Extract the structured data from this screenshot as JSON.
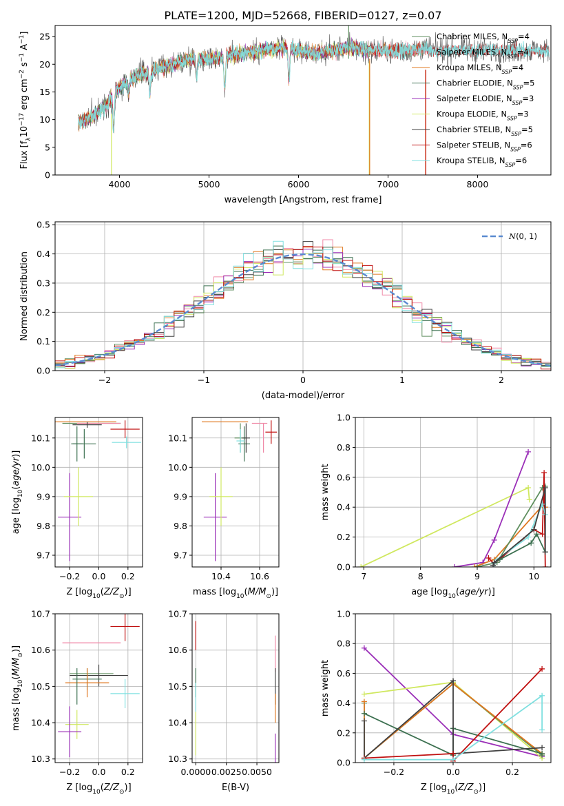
{
  "title": "PLATE=1200, MJD=52668, FIBERID=0127, z=0.07",
  "colors": {
    "Chabrier MILES": "#5f8f5f",
    "Salpeter MILES": "#f08aa8",
    "Kroupa MILES": "#e07820",
    "Chabrier ELODIE": "#3c7050",
    "Salpeter ELODIE": "#9b30b8",
    "Kroupa ELODIE": "#d0e860",
    "Chabrier STELIB": "#404040",
    "Salpeter STELIB": "#c01010",
    "Kroupa STELIB": "#80e0e0",
    "normal": "#5a8ad0"
  },
  "chart_data": [
    {
      "type": "line",
      "id": "spectrum",
      "title": "PLATE=1200, MJD=52668, FIBERID=0127, z=0.07",
      "xlabel": "wavelength [Angstrom, rest frame]",
      "ylabel": "Flux [f$_\\lambda$10$^{-17}$ erg cm$^{-2}$ s$^{-1}$ A$^{-1}$]",
      "xlim": [
        3280,
        8820
      ],
      "ylim": [
        0,
        27
      ],
      "xticks": [
        4000,
        5000,
        6000,
        7000,
        8000
      ],
      "yticks": [
        0,
        5,
        10,
        15,
        20,
        25
      ],
      "grid": false,
      "legend": "top-right",
      "legend_entries": [
        {
          "label": "Chabrier MILES, N",
          "sub": "SSP",
          "val": "=4",
          "series": "Chabrier MILES"
        },
        {
          "label": "Salpeter MILES, N",
          "sub": "SSP",
          "val": "=4",
          "series": "Salpeter MILES"
        },
        {
          "label": "Kroupa MILES, N",
          "sub": "SSP",
          "val": "=4",
          "series": "Kroupa MILES"
        },
        {
          "label": "Chabrier ELODIE, N",
          "sub": "SSP",
          "val": "=5",
          "series": "Chabrier ELODIE"
        },
        {
          "label": "Salpeter ELODIE, N",
          "sub": "SSP",
          "val": "=3",
          "series": "Salpeter ELODIE"
        },
        {
          "label": "Kroupa ELODIE, N",
          "sub": "SSP",
          "val": "=3",
          "series": "Kroupa ELODIE"
        },
        {
          "label": "Chabrier STELIB, N",
          "sub": "SSP",
          "val": "=5",
          "series": "Chabrier STELIB"
        },
        {
          "label": "Salpeter STELIB, N",
          "sub": "SSP",
          "val": "=6",
          "series": "Salpeter STELIB"
        },
        {
          "label": "Kroupa STELIB, N",
          "sub": "SSP",
          "val": "=6",
          "series": "Kroupa STELIB"
        }
      ],
      "continuum": {
        "x": [
          3550,
          3700,
          3850,
          3950,
          4050,
          4200,
          4400,
          4600,
          4800,
          5000,
          5200,
          5400,
          5600,
          5800,
          6000,
          6200,
          6400,
          6600,
          6800,
          7000,
          7200,
          7400,
          7500
        ],
        "y": [
          9.5,
          10.5,
          12.5,
          15.0,
          16.5,
          18.0,
          19.0,
          20.0,
          21.0,
          21.0,
          21.5,
          22.0,
          22.5,
          23.0,
          22.5,
          22.0,
          22.5,
          23.0,
          22.5,
          22.5,
          22.5,
          22.8,
          22.5
        ]
      },
      "absorption_features": [
        {
          "x": 3934,
          "y": 8.0
        },
        {
          "x": 4102,
          "y": 15.0
        },
        {
          "x": 4340,
          "y": 15.0
        },
        {
          "x": 4861,
          "y": 18.0
        },
        {
          "x": 5175,
          "y": 15.5
        },
        {
          "x": 5893,
          "y": 17.0
        }
      ],
      "spikes": [
        {
          "x": 3910,
          "y_from": 11.0,
          "y_to": 0.0,
          "series": "Kroupa ELODIE"
        },
        {
          "x": 6790,
          "y_from": 20.5,
          "y_to": 0.0,
          "series": "Kroupa ELODIE"
        },
        {
          "x": 6795,
          "y_from": 21.0,
          "y_to": 0.0,
          "series": "Kroupa MILES"
        },
        {
          "x": 7420,
          "y_from": 19.0,
          "y_to": 0.0,
          "series": "Kroupa MILES"
        },
        {
          "x": 7422,
          "y_from": 19.0,
          "y_to": 0.0,
          "series": "Salpeter STELIB"
        },
        {
          "x": 6560,
          "y_from": 21.0,
          "y_to": 27.5,
          "series": "Chabrier MILES"
        }
      ]
    },
    {
      "type": "step",
      "id": "residuals",
      "xlabel": "(data-model)/error",
      "ylabel": "Normed distribution",
      "xlim": [
        -2.5,
        2.5
      ],
      "ylim": [
        0,
        0.51
      ],
      "xticks": [
        -2,
        -1,
        0,
        1,
        2
      ],
      "xticklabels": [
        "−2",
        "−1",
        "0",
        "1",
        "2"
      ],
      "yticks": [
        0,
        0.1,
        0.2,
        0.3,
        0.4,
        0.5
      ],
      "yticklabels": [
        "0.0",
        "0.1",
        "0.2",
        "0.3",
        "0.4",
        "0.5"
      ],
      "grid": true,
      "legend": "top-right",
      "normal_label": "N(0, 1)",
      "bin_width": 0.1
    },
    {
      "type": "scatter",
      "id": "age-vs-Z",
      "xlabel": "Z [log10(Z/Z⊙)]",
      "ylabel": "age  [log10(age/yr)]",
      "xlim": [
        -0.3,
        0.3
      ],
      "ylim": [
        9.66,
        10.17
      ],
      "xticks": [
        -0.2,
        0.0,
        0.2
      ],
      "xticklabels": [
        "−0.2",
        "0.0",
        "0.2"
      ],
      "yticks": [
        9.7,
        9.8,
        9.9,
        10.0,
        10.1
      ],
      "yticklabels": [
        "9.7",
        "9.8",
        "9.9",
        "10.0",
        "10.1"
      ],
      "grid": true,
      "points": [
        {
          "series": "Chabrier MILES",
          "x": -0.05,
          "y": 10.15,
          "xerr": 0.2,
          "yerr": 0.0
        },
        {
          "series": "Salpeter MILES",
          "x": 0.0,
          "y": 10.15,
          "xerr": 0.15,
          "yerr": 0.0
        },
        {
          "series": "Kroupa MILES",
          "x": -0.1,
          "y": 10.155,
          "xerr": 0.22,
          "yerr": 0.0
        },
        {
          "series": "Chabrier ELODIE",
          "x": -0.15,
          "y": 10.08,
          "xerr": 0.04,
          "yerr": 0.06
        },
        {
          "series": "Salpeter ELODIE",
          "x": -0.2,
          "y": 9.83,
          "xerr": 0.08,
          "yerr": 0.15
        },
        {
          "series": "Kroupa ELODIE",
          "x": -0.14,
          "y": 9.9,
          "xerr": 0.1,
          "yerr": 0.1
        },
        {
          "series": "Chabrier STELIB",
          "x": -0.08,
          "y": 10.145,
          "xerr": 0.1,
          "yerr": 0.01
        },
        {
          "series": "Salpeter STELIB",
          "x": 0.18,
          "y": 10.13,
          "xerr": 0.1,
          "yerr": 0.03
        },
        {
          "series": "Kroupa STELIB",
          "x": 0.19,
          "y": 10.085,
          "xerr": 0.1,
          "yerr": 0.02
        },
        {
          "series": "Chabrier ELODIE",
          "x": -0.1,
          "y": 10.08,
          "xerr": 0.08,
          "yerr": 0.05
        }
      ]
    },
    {
      "type": "scatter",
      "id": "age-vs-mass",
      "xlabel": "mass [log10(M/M⊙)]",
      "ylabel": "",
      "xlim": [
        10.25,
        10.7
      ],
      "ylim": [
        9.66,
        10.17
      ],
      "xticks": [
        10.4,
        10.6
      ],
      "xticklabels": [
        "10.4",
        "10.6"
      ],
      "yticks": [
        9.7,
        9.8,
        9.9,
        10.0,
        10.1
      ],
      "yticklabels": [
        "9.7",
        "9.8",
        "9.9",
        "10.0",
        "10.1"
      ],
      "grid": true,
      "points": [
        {
          "series": "Kroupa MILES",
          "x": 10.42,
          "y": 10.155,
          "xerr": 0.12,
          "yerr": 0.0
        },
        {
          "series": "Salpeter MILES",
          "x": 10.6,
          "y": 10.15,
          "xerr": 0.04,
          "yerr": 0.0
        },
        {
          "series": "Chabrier MILES",
          "x": 10.5,
          "y": 10.1,
          "xerr": 0.03,
          "yerr": 0.05
        },
        {
          "series": "Chabrier ELODIE",
          "x": 10.52,
          "y": 10.08,
          "xerr": 0.03,
          "yerr": 0.06
        },
        {
          "series": "Salpeter ELODIE",
          "x": 10.37,
          "y": 9.83,
          "xerr": 0.06,
          "yerr": 0.15
        },
        {
          "series": "Kroupa ELODIE",
          "x": 10.4,
          "y": 9.9,
          "xerr": 0.06,
          "yerr": 0.1
        },
        {
          "series": "Chabrier STELIB",
          "x": 10.53,
          "y": 10.1,
          "xerr": 0.02,
          "yerr": 0.05
        },
        {
          "series": "Salpeter STELIB",
          "x": 10.66,
          "y": 10.12,
          "xerr": 0.03,
          "yerr": 0.04
        },
        {
          "series": "Kroupa STELIB",
          "x": 10.5,
          "y": 10.09,
          "xerr": 0.02,
          "yerr": 0.04
        },
        {
          "series": "Salpeter MILES",
          "x": 10.62,
          "y": 10.1,
          "xerr": 0.0,
          "yerr": 0.05
        }
      ]
    },
    {
      "type": "line",
      "id": "massweight-vs-age",
      "xlabel": "age  [log10(age/yr)]",
      "ylabel": "mass weight",
      "xlim": [
        6.85,
        10.3
      ],
      "ylim": [
        0,
        1
      ],
      "xticks": [
        7,
        8,
        9,
        10
      ],
      "xticklabels": [
        "7",
        "8",
        "9",
        "10"
      ],
      "yticks": [
        0,
        0.2,
        0.4,
        0.6,
        0.8,
        1.0
      ],
      "yticklabels": [
        "0.0",
        "0.2",
        "0.4",
        "0.6",
        "0.8",
        "1.0"
      ],
      "grid": true,
      "series": [
        {
          "name": "Kroupa ELODIE",
          "x": [
            6.95,
            9.9,
            9.92
          ],
          "y": [
            0.0,
            0.53,
            0.45
          ]
        },
        {
          "name": "Salpeter ELODIE",
          "x": [
            8.6,
            9.1,
            9.3,
            9.9
          ],
          "y": [
            0.0,
            0.03,
            0.18,
            0.77
          ]
        },
        {
          "name": "Kroupa MILES",
          "x": [
            8.95,
            9.3,
            10.15,
            10.2
          ],
          "y": [
            0.0,
            0.05,
            0.41,
            0.4
          ]
        },
        {
          "name": "Chabrier MILES",
          "x": [
            9.0,
            9.35,
            10.15,
            10.2
          ],
          "y": [
            0.0,
            0.03,
            0.53,
            0.54
          ]
        },
        {
          "name": "Salpeter STELIB",
          "x": [
            9.2,
            9.3,
            10.0,
            10.15,
            10.18,
            10.2
          ],
          "y": [
            0.06,
            0.02,
            0.25,
            0.22,
            0.63,
            0.0
          ]
        },
        {
          "name": "Kroupa STELIB",
          "x": [
            9.3,
            9.35,
            9.9,
            10.15,
            10.2
          ],
          "y": [
            0.02,
            0.05,
            0.2,
            0.42,
            0.35
          ]
        },
        {
          "name": "Chabrier ELODIE",
          "x": [
            9.3,
            9.4,
            9.95,
            10.05,
            10.2
          ],
          "y": [
            0.03,
            0.05,
            0.16,
            0.22,
            0.1
          ]
        },
        {
          "name": "Chabrier STELIB",
          "x": [
            9.28,
            9.3,
            10.0,
            10.2,
            10.2
          ],
          "y": [
            0.01,
            0.03,
            0.25,
            0.53,
            0.1
          ]
        }
      ]
    },
    {
      "type": "scatter",
      "id": "mass-vs-Z",
      "xlabel": "Z [log10(Z/Z⊙)]",
      "ylabel": "mass [log10(M/M⊙)]",
      "xlim": [
        -0.3,
        0.3
      ],
      "ylim": [
        10.29,
        10.7
      ],
      "xticks": [
        -0.2,
        0.0,
        0.2
      ],
      "xticklabels": [
        "−0.2",
        "0.0",
        "0.2"
      ],
      "yticks": [
        10.3,
        10.4,
        10.5,
        10.6,
        10.7
      ],
      "yticklabels": [
        "10.3",
        "10.4",
        "10.5",
        "10.6",
        "10.7"
      ],
      "grid": true,
      "points": [
        {
          "series": "Salpeter STELIB",
          "x": 0.18,
          "y": 10.665,
          "xerr": 0.1,
          "yerr": 0.04
        },
        {
          "series": "Salpeter MILES",
          "x": -0.05,
          "y": 10.62,
          "xerr": 0.2,
          "yerr": 0.0
        },
        {
          "series": "Chabrier MILES",
          "x": -0.05,
          "y": 10.535,
          "xerr": 0.15,
          "yerr": 0.0
        },
        {
          "series": "Chabrier STELIB",
          "x": 0.0,
          "y": 10.53,
          "xerr": 0.2,
          "yerr": 0.03
        },
        {
          "series": "Chabrier ELODIE",
          "x": -0.08,
          "y": 10.52,
          "xerr": 0.1,
          "yerr": 0.03
        },
        {
          "series": "Kroupa MILES",
          "x": -0.08,
          "y": 10.51,
          "xerr": 0.15,
          "yerr": 0.04
        },
        {
          "series": "Kroupa STELIB",
          "x": 0.18,
          "y": 10.48,
          "xerr": 0.1,
          "yerr": 0.04
        },
        {
          "series": "Kroupa ELODIE",
          "x": -0.15,
          "y": 10.395,
          "xerr": 0.08,
          "yerr": 0.04
        },
        {
          "series": "Salpeter ELODIE",
          "x": -0.2,
          "y": 10.375,
          "xerr": 0.08,
          "yerr": 0.07
        },
        {
          "series": "Chabrier ELODIE",
          "x": -0.15,
          "y": 10.5,
          "xerr": 0.0,
          "yerr": 0.05
        }
      ]
    },
    {
      "type": "scatter",
      "id": "mass-vs-ebv",
      "xlabel": "E(B-V)",
      "ylabel": "",
      "xlim": [
        -0.0003,
        0.0068
      ],
      "ylim": [
        10.29,
        10.7
      ],
      "xticks": [
        0.0,
        0.0025,
        0.005
      ],
      "xticklabels": [
        "0.0000",
        "0.0025",
        "0.0050"
      ],
      "yticks": [
        10.3,
        10.4,
        10.5,
        10.6,
        10.7
      ],
      "yticklabels": [
        "10.3",
        "10.4",
        "10.5",
        "10.6",
        "10.7"
      ],
      "grid": true,
      "points": [
        {
          "series": "Salpeter STELIB",
          "x": 0.0,
          "y": 10.64,
          "xerr": 0.0,
          "yerr": 0.04
        },
        {
          "series": "Chabrier ELODIE",
          "x": 0.0,
          "y": 10.51,
          "xerr": 0.0,
          "yerr": 0.04
        },
        {
          "series": "Kroupa STELIB",
          "x": 0.0,
          "y": 10.47,
          "xerr": 0.0,
          "yerr": 0.04
        },
        {
          "series": "Kroupa ELODIE",
          "x": 0.0,
          "y": 10.37,
          "xerr": 0.0,
          "yerr": 0.06
        },
        {
          "series": "Salpeter MILES",
          "x": 0.0065,
          "y": 10.59,
          "xerr": 0.0,
          "yerr": 0.05
        },
        {
          "series": "Chabrier STELIB",
          "x": 0.0065,
          "y": 10.5,
          "xerr": 0.0,
          "yerr": 0.05
        },
        {
          "series": "Kroupa MILES",
          "x": 0.0065,
          "y": 10.44,
          "xerr": 0.0,
          "yerr": 0.04
        },
        {
          "series": "Salpeter ELODIE",
          "x": 0.0065,
          "y": 10.33,
          "xerr": 0.0,
          "yerr": 0.04
        }
      ]
    },
    {
      "type": "line",
      "id": "massweight-vs-Z",
      "xlabel": "Z [log10(Z/Z⊙)]",
      "ylabel": "mass weight",
      "xlim": [
        -0.33,
        0.33
      ],
      "ylim": [
        0,
        1
      ],
      "xticks": [
        -0.2,
        0.0,
        0.2
      ],
      "xticklabels": [
        "−0.2",
        "0.0",
        "0.2"
      ],
      "yticks": [
        0,
        0.2,
        0.4,
        0.6,
        0.8,
        1.0
      ],
      "yticklabels": [
        "0.0",
        "0.2",
        "0.4",
        "0.6",
        "0.8",
        "1.0"
      ],
      "grid": true,
      "series": [
        {
          "name": "Salpeter ELODIE",
          "x": [
            -0.3,
            0.0,
            0.3
          ],
          "y": [
            0.77,
            0.19,
            0.04
          ]
        },
        {
          "name": "Kroupa ELODIE",
          "x": [
            -0.3,
            0.0,
            0.3
          ],
          "y": [
            0.46,
            0.54,
            0.03
          ]
        },
        {
          "name": "Chabrier MILES",
          "x": [
            -0.3,
            -0.3,
            0.0,
            0.3
          ],
          "y": [
            0.4,
            0.03,
            0.53,
            0.05
          ]
        },
        {
          "name": "Kroupa MILES",
          "x": [
            -0.3,
            -0.3,
            0.0,
            0.3
          ],
          "y": [
            0.41,
            0.03,
            0.53,
            0.06
          ]
        },
        {
          "name": "Chabrier ELODIE",
          "x": [
            -0.3,
            0.0,
            0.0,
            0.3
          ],
          "y": [
            0.33,
            0.05,
            0.23,
            0.06
          ]
        },
        {
          "name": "Chabrier STELIB",
          "x": [
            -0.3,
            -0.3,
            0.0,
            0.0,
            0.3
          ],
          "y": [
            0.28,
            0.03,
            0.55,
            0.06,
            0.1
          ]
        },
        {
          "name": "Salpeter STELIB",
          "x": [
            -0.3,
            0.0,
            0.0,
            0.3
          ],
          "y": [
            0.03,
            0.06,
            0.01,
            0.63
          ]
        },
        {
          "name": "Kroupa STELIB",
          "x": [
            -0.3,
            0.0,
            0.3,
            0.3
          ],
          "y": [
            0.02,
            0.02,
            0.45,
            0.22
          ]
        }
      ]
    }
  ]
}
